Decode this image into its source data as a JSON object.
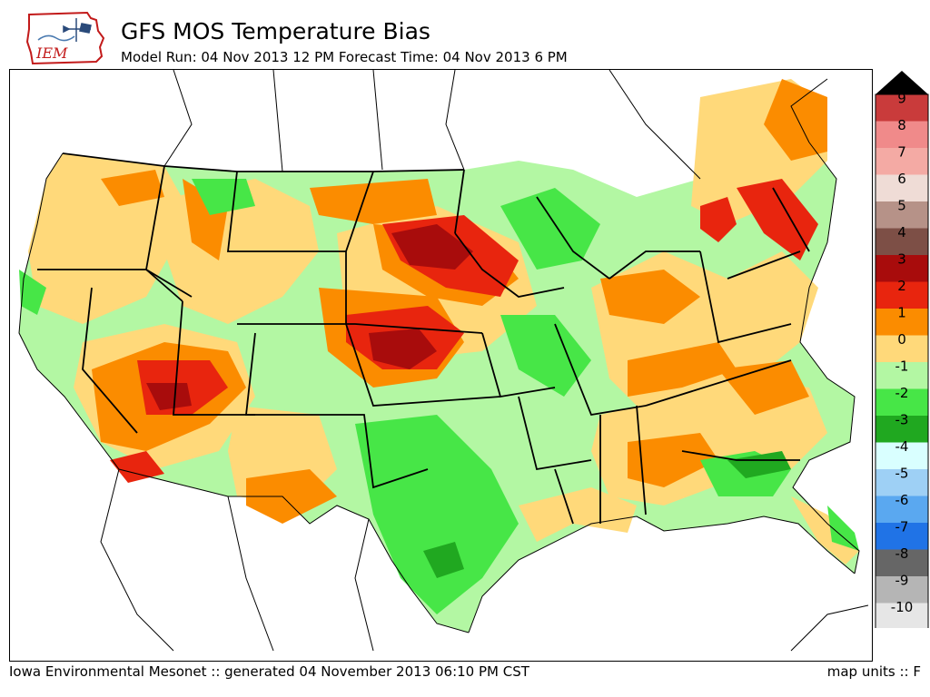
{
  "header": {
    "title": "GFS MOS Temperature Bias",
    "subtitle": "Model Run: 04 Nov 2013 12 PM Forecast Time: 04 Nov 2013 6 PM",
    "logo_text": "IEM"
  },
  "footer": {
    "left": "Iowa Environmental Mesonet :: generated 04 November 2013 06:10 PM CST",
    "right": "map units :: F"
  },
  "legend": {
    "levels": [
      {
        "label": "9",
        "color": "#c93b3b"
      },
      {
        "label": "8",
        "color": "#f08a8a"
      },
      {
        "label": "7",
        "color": "#f4aaa4"
      },
      {
        "label": "6",
        "color": "#efdcd6"
      },
      {
        "label": "5",
        "color": "#b69288"
      },
      {
        "label": "4",
        "color": "#7d4f46"
      },
      {
        "label": "3",
        "color": "#a80c0c"
      },
      {
        "label": "2",
        "color": "#e8250e"
      },
      {
        "label": "1",
        "color": "#fb8c00"
      },
      {
        "label": "0",
        "color": "#ffd97a"
      },
      {
        "label": "-1",
        "color": "#b3f7a3"
      },
      {
        "label": "-2",
        "color": "#47e647"
      },
      {
        "label": "-3",
        "color": "#20a820"
      },
      {
        "label": "-4",
        "color": "#d9ffff"
      },
      {
        "label": "-5",
        "color": "#9ed0f5"
      },
      {
        "label": "-6",
        "color": "#5aa8f0"
      },
      {
        "label": "-7",
        "color": "#2073e6"
      },
      {
        "label": "-8",
        "color": "#666666"
      },
      {
        "label": "-9",
        "color": "#b5b5b5"
      },
      {
        "label": "-10",
        "color": "#e6e6e6"
      }
    ]
  },
  "map": {
    "region": "Contiguous United States",
    "field": "GFS MOS temperature bias",
    "units": "F",
    "warm_bias_areas": [
      "South Dakota",
      "Nebraska",
      "Kansas",
      "southern Nevada",
      "Arizona",
      "New England",
      "New York"
    ],
    "cool_bias_areas": [
      "Texas",
      "Oklahoma",
      "Missouri",
      "Georgia",
      "Wisconsin"
    ]
  }
}
